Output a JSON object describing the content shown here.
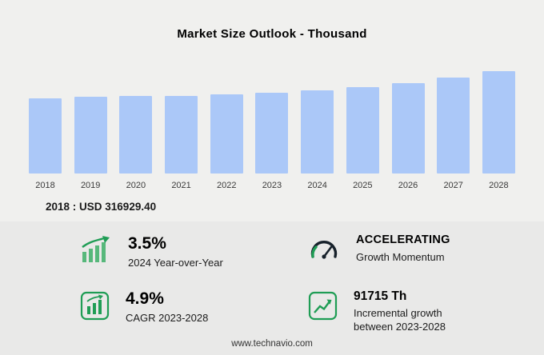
{
  "title": "Market Size Outlook  - Thousand",
  "chart_data": {
    "type": "bar",
    "title": "Market Size Outlook  - Thousand",
    "unit": "USD Thousand",
    "categories": [
      "2018",
      "2019",
      "2020",
      "2021",
      "2022",
      "2023",
      "2024",
      "2025",
      "2026",
      "2027",
      "2028"
    ],
    "values": [
      316929.4,
      322800,
      325300,
      327900,
      331800,
      339180,
      351051,
      364100,
      380500,
      402600,
      430895
    ],
    "ylim": [
      0,
      430895
    ],
    "grid": false,
    "legend": "none",
    "baseline_label": "2018 : USD  316929.40"
  },
  "colors": {
    "bar": "#abc8f8",
    "icon_green": "#1f9d55",
    "icon_dark": "#17212b",
    "panel_bg": "#e9e9e8",
    "page_bg": "#f0f0ee"
  },
  "stats": [
    {
      "icon": "yoy-growth-bars-icon",
      "value": "3.5%",
      "label": "2024 Year-over-Year"
    },
    {
      "icon": "gauge-icon",
      "value": "ACCELERATING",
      "label": "Growth Momentum"
    },
    {
      "icon": "cagr-bars-icon",
      "value": "4.9%",
      "label": "CAGR 2023-2028"
    },
    {
      "icon": "incremental-growth-chart-icon",
      "value": "91715 Th",
      "label": "Incremental growth between 2023-2028"
    }
  ],
  "footer": "www.technavio.com"
}
